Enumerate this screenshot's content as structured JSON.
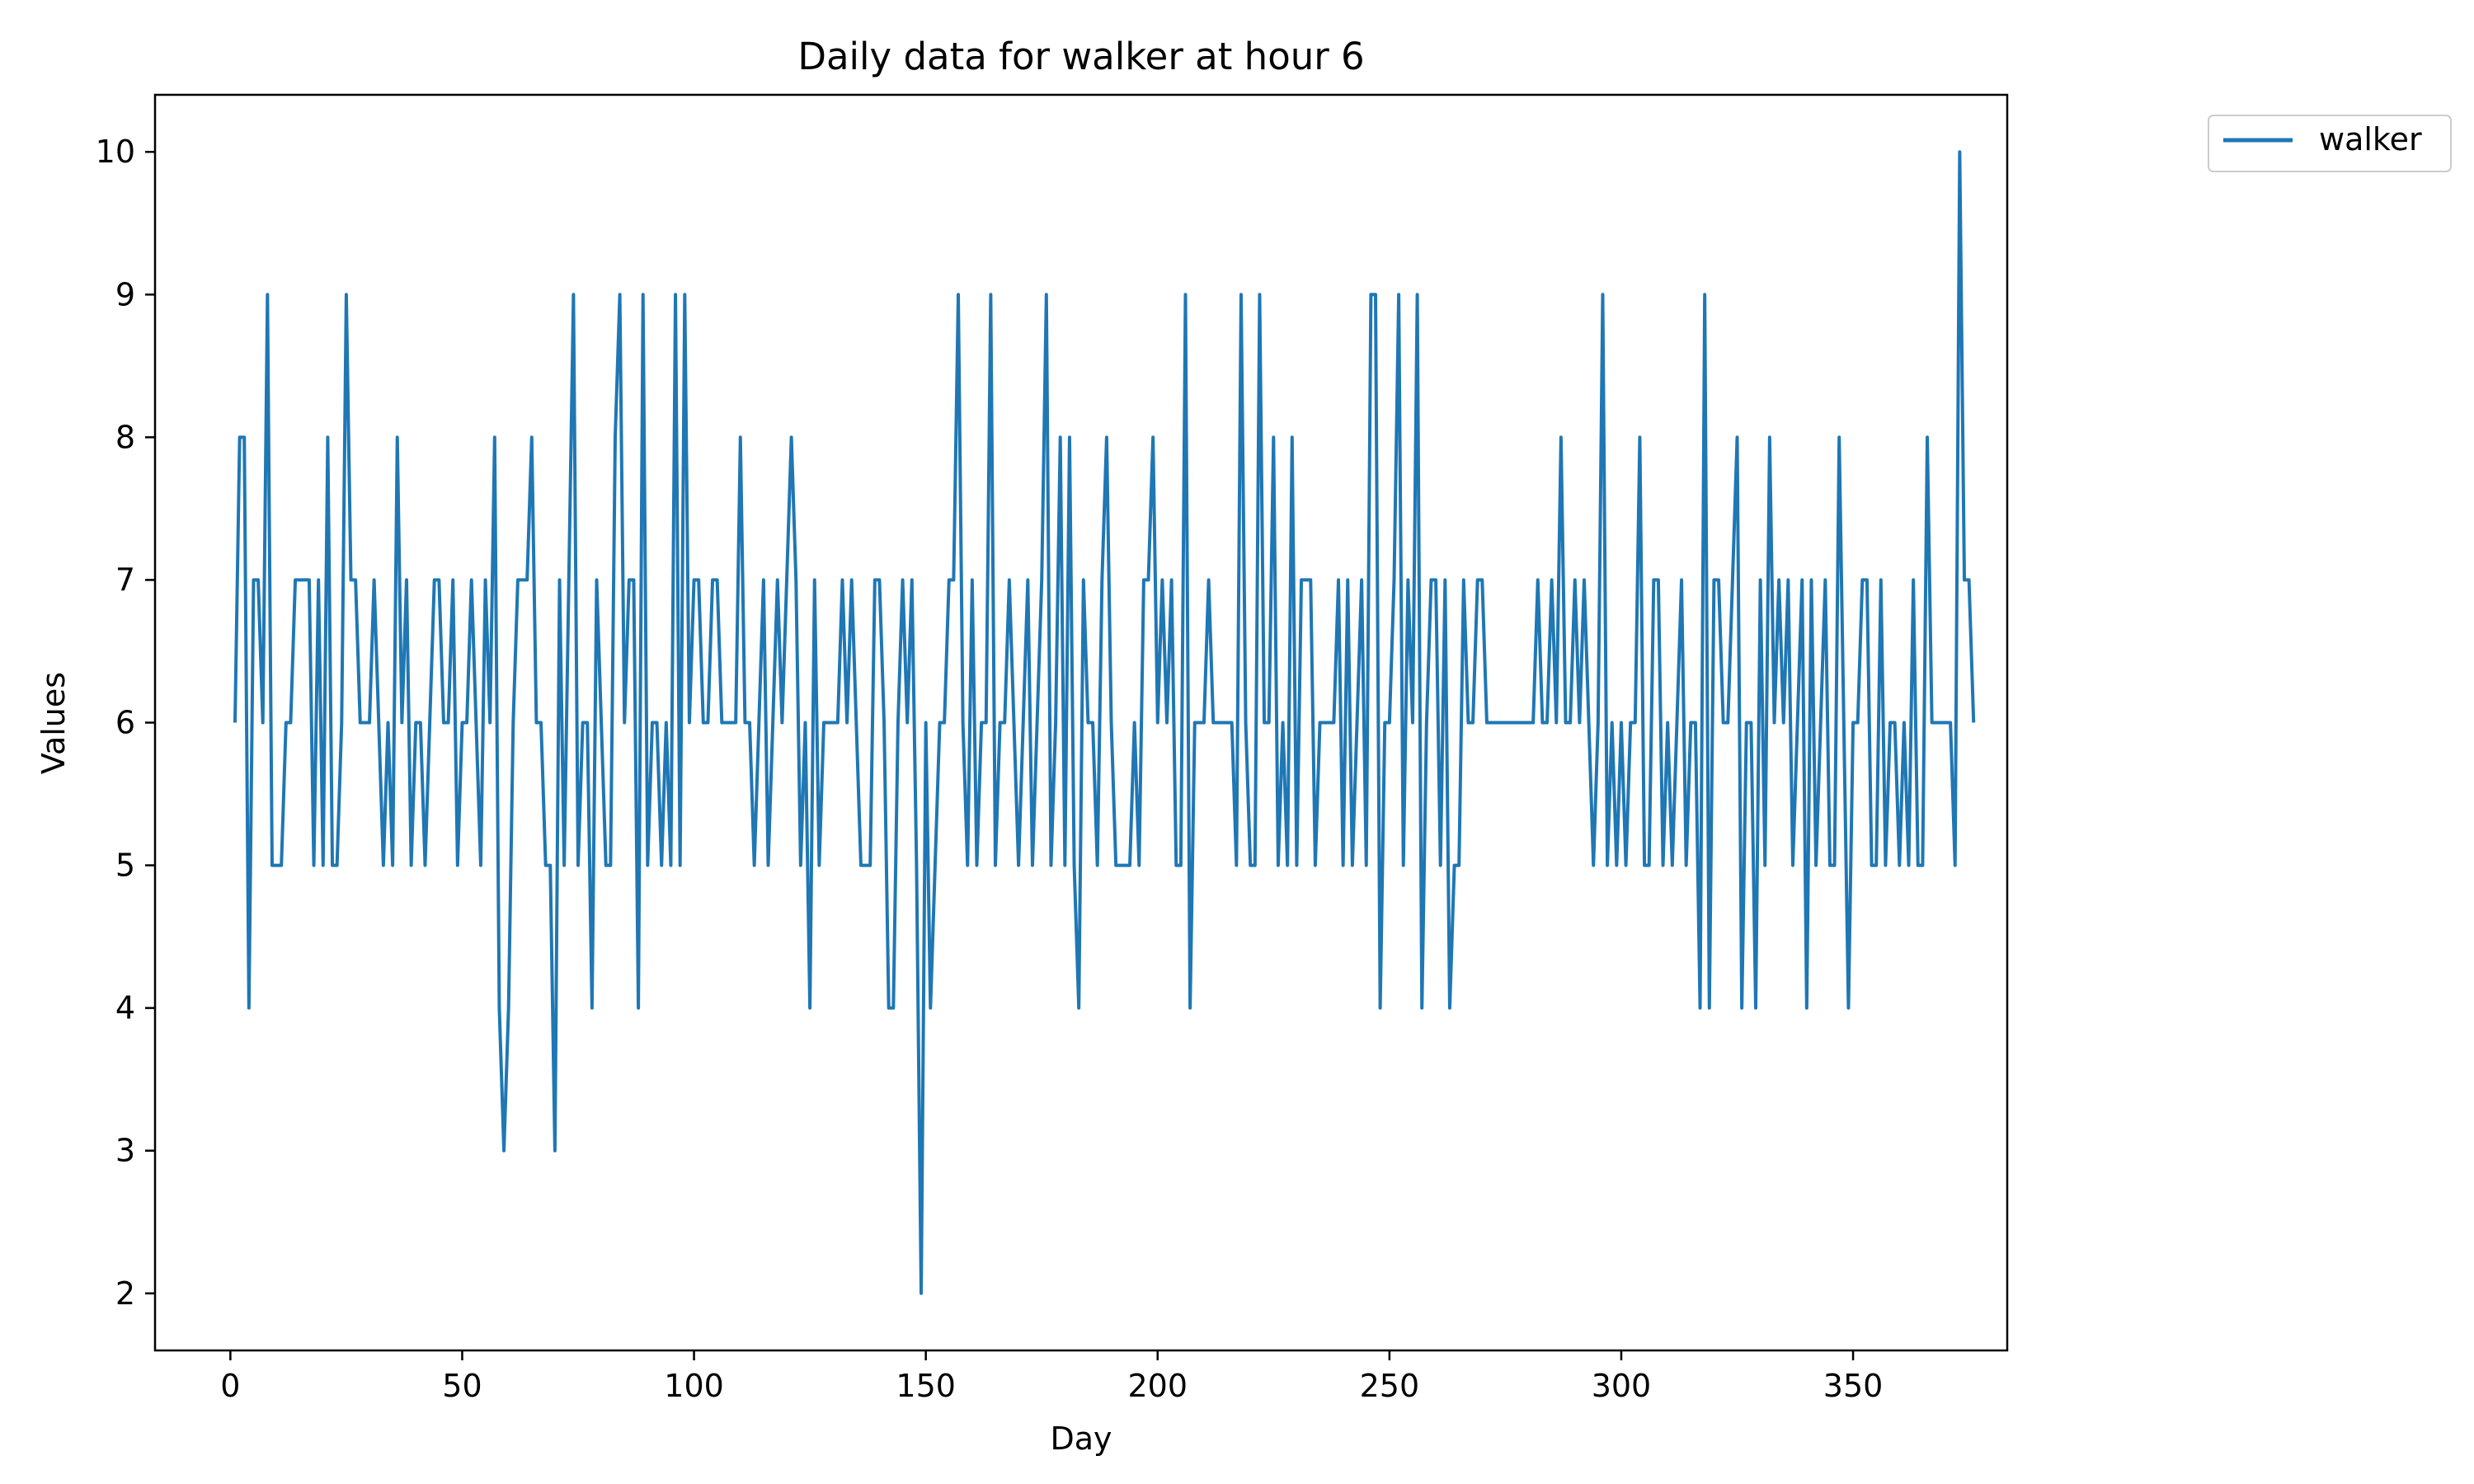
{
  "chart_data": {
    "type": "line",
    "title": "Daily data for walker at hour 6",
    "xlabel": "Day",
    "ylabel": "Values",
    "xlim": [
      -16.25,
      383.25
    ],
    "ylim": [
      1.6,
      10.4
    ],
    "xticks": [
      0,
      50,
      100,
      150,
      200,
      250,
      300,
      350
    ],
    "yticks": [
      2,
      3,
      4,
      5,
      6,
      7,
      8,
      9,
      10
    ],
    "grid": false,
    "legend_position": "upper-right-outside",
    "series": [
      {
        "name": "walker",
        "color": "#1f77b4",
        "x_start": 1,
        "values": [
          6,
          8,
          8,
          4,
          7,
          7,
          6,
          9,
          5,
          5,
          5,
          6,
          6,
          7,
          7,
          7,
          7,
          5,
          7,
          5,
          8,
          5,
          5,
          6,
          9,
          7,
          7,
          6,
          6,
          6,
          7,
          6,
          5,
          6,
          5,
          8,
          6,
          7,
          5,
          6,
          6,
          5,
          6,
          7,
          7,
          6,
          6,
          7,
          5,
          6,
          6,
          7,
          6,
          5,
          7,
          6,
          8,
          4,
          3,
          4,
          6,
          7,
          7,
          7,
          8,
          6,
          6,
          5,
          5,
          3,
          7,
          5,
          7,
          9,
          5,
          6,
          6,
          4,
          7,
          6,
          5,
          5,
          8,
          9,
          6,
          7,
          7,
          4,
          9,
          5,
          6,
          6,
          5,
          6,
          5,
          9,
          5,
          9,
          6,
          7,
          7,
          6,
          6,
          7,
          7,
          6,
          6,
          6,
          6,
          8,
          6,
          6,
          5,
          6,
          7,
          5,
          6,
          7,
          6,
          7,
          8,
          7,
          5,
          6,
          4,
          7,
          5,
          6,
          6,
          6,
          6,
          7,
          6,
          7,
          6,
          5,
          5,
          5,
          7,
          7,
          6,
          4,
          4,
          6,
          7,
          6,
          7,
          5,
          2,
          6,
          4,
          5,
          6,
          6,
          7,
          7,
          9,
          6,
          5,
          7,
          5,
          6,
          6,
          9,
          5,
          6,
          6,
          7,
          6,
          5,
          6,
          7,
          5,
          6,
          7,
          9,
          5,
          6,
          8,
          5,
          8,
          5,
          4,
          7,
          6,
          6,
          5,
          7,
          8,
          6,
          5,
          5,
          5,
          5,
          6,
          5,
          7,
          7,
          8,
          6,
          7,
          6,
          7,
          5,
          5,
          9,
          4,
          6,
          6,
          6,
          7,
          6,
          6,
          6,
          6,
          6,
          5,
          9,
          6,
          5,
          5,
          9,
          6,
          6,
          8,
          5,
          6,
          5,
          8,
          5,
          7,
          7,
          7,
          5,
          6,
          6,
          6,
          6,
          7,
          5,
          7,
          5,
          6,
          7,
          5,
          9,
          9,
          4,
          6,
          6,
          7,
          9,
          5,
          7,
          6,
          9,
          4,
          6,
          7,
          7,
          5,
          7,
          4,
          5,
          5,
          7,
          6,
          6,
          7,
          7,
          6,
          6,
          6,
          6,
          6,
          6,
          6,
          6,
          6,
          6,
          6,
          7,
          6,
          6,
          7,
          6,
          8,
          6,
          6,
          7,
          6,
          7,
          6,
          5,
          6,
          9,
          5,
          6,
          5,
          6,
          5,
          6,
          6,
          8,
          5,
          5,
          7,
          7,
          5,
          6,
          5,
          6,
          7,
          5,
          6,
          6,
          4,
          9,
          4,
          7,
          7,
          6,
          6,
          7,
          8,
          4,
          6,
          6,
          4,
          7,
          5,
          8,
          6,
          7,
          6,
          7,
          5,
          6,
          7,
          4,
          7,
          5,
          6,
          7,
          5,
          5,
          8,
          6,
          4,
          6,
          6,
          7,
          7,
          5,
          5,
          7,
          5,
          6,
          6,
          5,
          6,
          5,
          7,
          5,
          5,
          8,
          6,
          6,
          6,
          6,
          6,
          5,
          10,
          7,
          7,
          6
        ]
      }
    ]
  }
}
